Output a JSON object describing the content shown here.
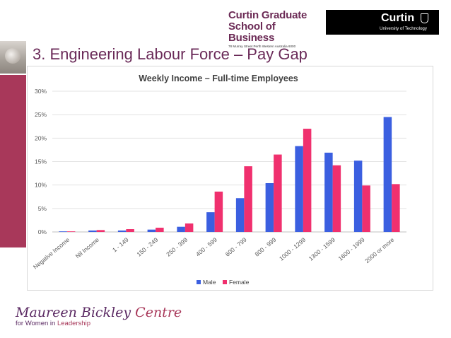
{
  "header": {
    "school_line1": "Curtin Graduate",
    "school_line2": "School of Business",
    "school_address": "78 Murray Street Perth Western Australia 6000",
    "university_name": "Curtin",
    "university_sub": "University of Technology"
  },
  "slide": {
    "title": "3. Engineering Labour Force – Pay Gap"
  },
  "footer": {
    "logo_line1_a": "Maureen Bickley",
    "logo_line1_b": " Centre",
    "logo_line2_a": "for Women in ",
    "logo_line2_b": "Leadership"
  },
  "colors": {
    "male": "#3b5fe0",
    "female": "#f0306e",
    "accent": "#a8385a",
    "title": "#6a2a58"
  },
  "chart_data": {
    "type": "bar",
    "title": "Weekly Income – Full-time Employees",
    "xlabel": "",
    "ylabel": "",
    "ylim": [
      0,
      30
    ],
    "yticks": [
      0,
      5,
      10,
      15,
      20,
      25,
      30
    ],
    "ytick_suffix": "%",
    "grid": true,
    "legend_position": "bottom",
    "categories": [
      "Negative Income",
      "Nil Income",
      "1 - 149",
      "150 - 249",
      "250 - 399",
      "400 - 599",
      "600 - 799",
      "800 - 999",
      "1000 - 1299",
      "1300 - 1599",
      "1600 - 1999",
      "2000 or more"
    ],
    "series": [
      {
        "name": "Male",
        "color": "#3b5fe0",
        "values": [
          0.1,
          0.3,
          0.3,
          0.5,
          1.1,
          4.2,
          7.2,
          10.4,
          18.3,
          16.9,
          15.2,
          24.5
        ]
      },
      {
        "name": "Female",
        "color": "#f0306e",
        "values": [
          0.1,
          0.4,
          0.6,
          0.9,
          1.8,
          8.6,
          14.0,
          16.5,
          22.0,
          14.2,
          9.9,
          10.2
        ]
      }
    ]
  }
}
